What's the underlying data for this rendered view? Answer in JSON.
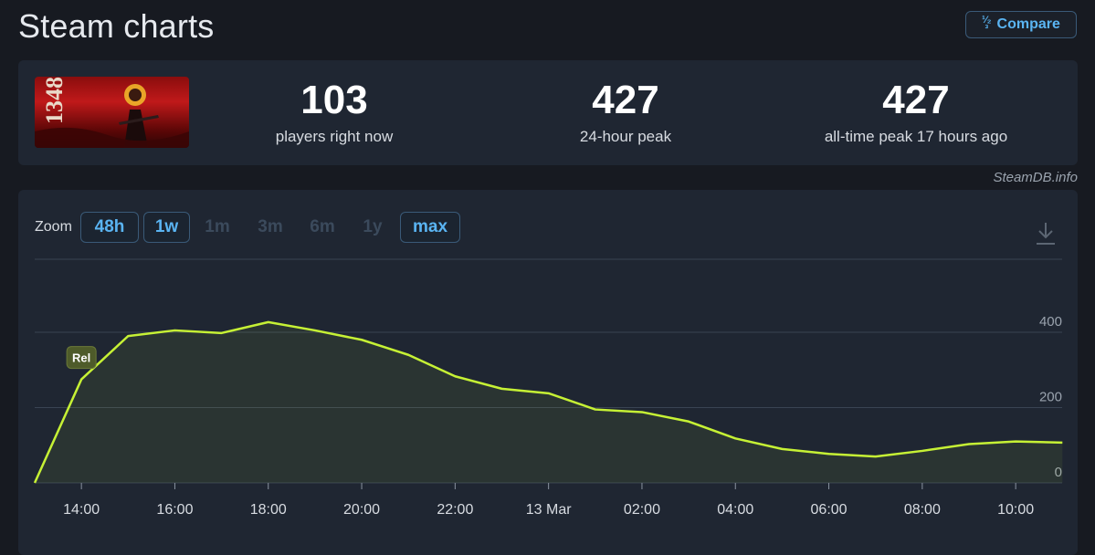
{
  "header": {
    "title": "Steam charts",
    "compare_label": "Compare",
    "compare_icon": "1⁄2 3"
  },
  "stats": [
    {
      "value": "103",
      "label": "players right now"
    },
    {
      "value": "427",
      "label": "24-hour peak"
    },
    {
      "value": "427",
      "label": "all-time peak 17 hours ago"
    }
  ],
  "credit": "SteamDB.info",
  "zoom": {
    "label": "Zoom",
    "options": [
      {
        "label": "48h",
        "active": true
      },
      {
        "label": "1w",
        "active": true
      },
      {
        "label": "1m",
        "active": false
      },
      {
        "label": "3m",
        "active": false
      },
      {
        "label": "6m",
        "active": false
      },
      {
        "label": "1y",
        "active": false
      },
      {
        "label": "max",
        "active": true
      }
    ]
  },
  "colors": {
    "line": "#c6f135",
    "grid": "#3a4453",
    "accent": "#5ab4f2"
  },
  "chart_data": {
    "type": "area",
    "x": [
      "13:00",
      "14:00",
      "15:00",
      "16:00",
      "17:00",
      "18:00",
      "19:00",
      "20:00",
      "21:00",
      "22:00",
      "23:00",
      "00:00",
      "01:00",
      "02:00",
      "03:00",
      "04:00",
      "05:00",
      "06:00",
      "07:00",
      "08:00",
      "09:00",
      "10:00",
      "11:00"
    ],
    "series": [
      {
        "values": [
          0,
          275,
          390,
          405,
          398,
          427,
          405,
          380,
          340,
          283,
          250,
          238,
          195,
          188,
          163,
          118,
          90,
          77,
          70,
          85,
          103,
          110,
          107
        ]
      }
    ],
    "x_tick_labels": [
      "14:00",
      "16:00",
      "18:00",
      "20:00",
      "22:00",
      "13 Mar",
      "02:00",
      "04:00",
      "06:00",
      "08:00",
      "10:00"
    ],
    "x_tick_indices": [
      1,
      3,
      5,
      7,
      9,
      11,
      13,
      15,
      17,
      19,
      21
    ],
    "y_tick_labels": [
      "400",
      "200",
      "0"
    ],
    "y_tick_values": [
      400,
      200,
      0
    ],
    "ylim": [
      0,
      600
    ],
    "annotation": {
      "label": "Rel",
      "index": 1
    },
    "grid": true
  }
}
